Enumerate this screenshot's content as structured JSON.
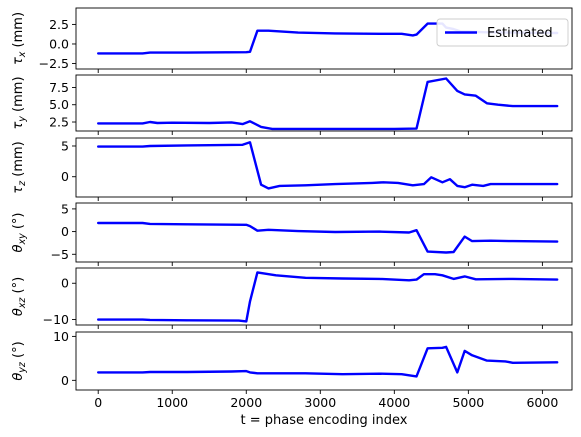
{
  "chart_data": {
    "type": "line",
    "xlabel": "t = phase encoding index",
    "xlim": [
      -300,
      6400
    ],
    "xticks": [
      0,
      1000,
      2000,
      3000,
      4000,
      5000,
      6000
    ],
    "legend": {
      "label": "Estimated",
      "placement": "top-right"
    },
    "line_color": "#0000ff",
    "subplots": [
      {
        "ylabel_base": "τ",
        "ylabel_sub": "x",
        "ylabel_unit": " (mm)",
        "ylim": [
          -3.2,
          4.6
        ],
        "yticks": [
          2.5,
          0.0,
          -2.5
        ],
        "ytick_labels": [
          "2.5",
          "0.0",
          "−2.5"
        ],
        "x": [
          0,
          600,
          700,
          1200,
          2000,
          2050,
          2150,
          2300,
          2700,
          3200,
          3800,
          4100,
          4250,
          4300,
          4450,
          4650,
          4700,
          4800,
          4900,
          5000,
          5200,
          5600,
          6200
        ],
        "y": [
          -1.2,
          -1.2,
          -1.1,
          -1.1,
          -1.05,
          -1.0,
          1.7,
          1.7,
          1.45,
          1.35,
          1.3,
          1.3,
          1.1,
          1.2,
          2.6,
          2.6,
          2.1,
          1.9,
          1.6,
          1.6,
          1.5,
          1.45,
          1.4
        ]
      },
      {
        "ylabel_base": "τ",
        "ylabel_sub": "y",
        "ylabel_unit": " (mm)",
        "ylim": [
          1.2,
          9.3
        ],
        "yticks": [
          2.5,
          5.0,
          7.5
        ],
        "ytick_labels": [
          "2.5",
          "5.0",
          "7.5"
        ],
        "x": [
          0,
          600,
          700,
          800,
          1000,
          1500,
          1800,
          1950,
          2050,
          2200,
          2350,
          2800,
          3300,
          4000,
          4300,
          4450,
          4700,
          4850,
          4950,
          5100,
          5250,
          5400,
          5600,
          6200
        ],
        "y": [
          2.3,
          2.3,
          2.5,
          2.35,
          2.4,
          2.35,
          2.45,
          2.2,
          2.6,
          1.8,
          1.5,
          1.5,
          1.5,
          1.5,
          1.55,
          8.3,
          8.8,
          7.0,
          6.5,
          6.3,
          5.2,
          5.0,
          4.8,
          4.8
        ]
      },
      {
        "ylabel_base": "τ",
        "ylabel_sub": "z",
        "ylabel_unit": " (mm)",
        "ylim": [
          -3.3,
          6.3
        ],
        "yticks": [
          5,
          0
        ],
        "ytick_labels": [
          "5",
          "0"
        ],
        "x": [
          0,
          600,
          700,
          1200,
          1950,
          2050,
          2200,
          2300,
          2450,
          2800,
          3200,
          3700,
          3850,
          4050,
          4250,
          4400,
          4500,
          4650,
          4750,
          4850,
          4950,
          5050,
          5200,
          5300,
          5600,
          6200
        ],
        "y": [
          4.9,
          4.9,
          5.0,
          5.1,
          5.2,
          5.6,
          -1.3,
          -1.9,
          -1.5,
          -1.4,
          -1.2,
          -1.0,
          -0.9,
          -1.0,
          -1.4,
          -1.2,
          -0.1,
          -0.9,
          -0.4,
          -1.5,
          -1.7,
          -1.3,
          -1.5,
          -1.2,
          -1.2,
          -1.2
        ]
      },
      {
        "ylabel_base": "θ",
        "ylabel_sub": "xy",
        "ylabel_unit": " (°)",
        "ylim": [
          -6.7,
          6.3
        ],
        "yticks": [
          5,
          0,
          -5
        ],
        "ytick_labels": [
          "5",
          "0",
          "−5"
        ],
        "x": [
          0,
          600,
          700,
          1200,
          2000,
          2050,
          2150,
          2300,
          2700,
          3200,
          3800,
          4200,
          4300,
          4450,
          4700,
          4800,
          4950,
          5050,
          5300,
          5600,
          6200
        ],
        "y": [
          1.9,
          1.9,
          1.7,
          1.6,
          1.5,
          1.2,
          0.2,
          0.4,
          0.1,
          -0.1,
          0.0,
          -0.2,
          0.3,
          -4.4,
          -4.6,
          -4.5,
          -1.1,
          -2.1,
          -2.0,
          -2.1,
          -2.2
        ]
      },
      {
        "ylabel_base": "θ",
        "ylabel_sub": "xz",
        "ylabel_unit": " (°)",
        "ylim": [
          -11.5,
          4.2
        ],
        "yticks": [
          0,
          -10
        ],
        "ytick_labels": [
          "0",
          "−10"
        ],
        "x": [
          0,
          600,
          700,
          1200,
          1900,
          2000,
          2050,
          2150,
          2400,
          2800,
          3300,
          3800,
          4200,
          4300,
          4400,
          4550,
          4650,
          4800,
          4950,
          5100,
          5600,
          6200
        ],
        "y": [
          -10.0,
          -10.0,
          -10.1,
          -10.2,
          -10.3,
          -10.5,
          -5.0,
          3.0,
          2.2,
          1.5,
          1.3,
          1.2,
          0.8,
          1.0,
          2.5,
          2.5,
          2.2,
          1.2,
          1.9,
          1.1,
          1.2,
          1.0
        ]
      },
      {
        "ylabel_base": "θ",
        "ylabel_sub": "yz",
        "ylabel_unit": " (°)",
        "ylim": [
          -2.2,
          11.0
        ],
        "yticks": [
          10,
          0
        ],
        "ytick_labels": [
          "10",
          "0"
        ],
        "x": [
          0,
          600,
          700,
          1200,
          1800,
          2000,
          2050,
          2150,
          2800,
          3300,
          3800,
          4100,
          4300,
          4450,
          4650,
          4700,
          4850,
          4950,
          5050,
          5250,
          5500,
          5600,
          6200
        ],
        "y": [
          1.8,
          1.8,
          1.9,
          1.9,
          2.0,
          2.1,
          1.8,
          1.6,
          1.6,
          1.4,
          1.5,
          1.4,
          0.9,
          7.3,
          7.4,
          7.6,
          1.8,
          6.7,
          5.7,
          4.5,
          4.3,
          4.0,
          4.1
        ]
      }
    ]
  }
}
